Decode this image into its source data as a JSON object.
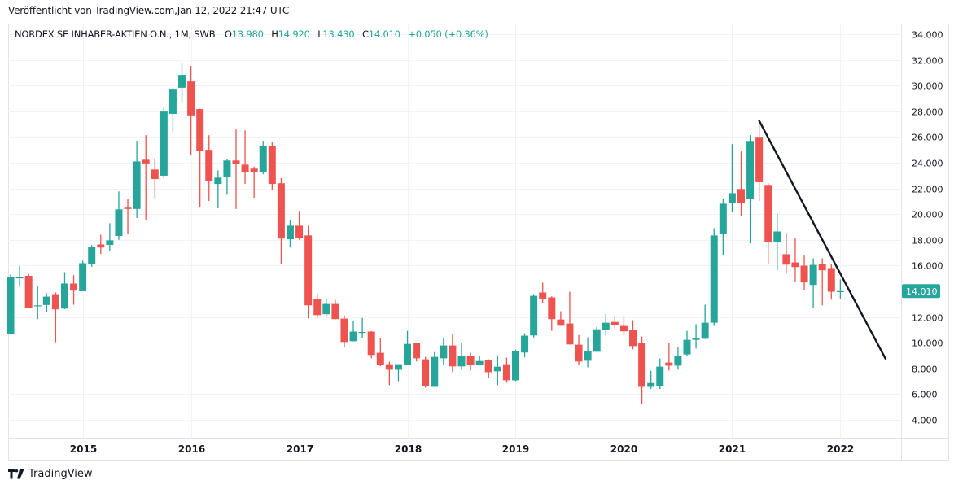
{
  "header": {
    "published": "Veröffentlicht von TradingView.com,Jan 12, 2022 21:47 UTC"
  },
  "legend": {
    "symbol": "NORDEX SE INHABER-AKTIEN O.N., 1M, SWB",
    "o_label": "O",
    "o_value": "13.980",
    "h_label": "H",
    "h_value": "14.920",
    "l_label": "L",
    "l_value": "13.430",
    "c_label": "C",
    "c_value": "14.010",
    "change": "+0.050 (+0.36%)"
  },
  "footer": {
    "brand": "TradingView"
  },
  "colors": {
    "up": "#26a69a",
    "down": "#ef5350",
    "trendline": "#131722",
    "grid": "#f0f3fa"
  },
  "chart_data": {
    "type": "candlestick",
    "title": "NORDEX SE INHABER-AKTIEN O.N., 1M, SWB",
    "interval": "1M",
    "start_month": "2014-05",
    "ylim": [
      2.6,
      34.76
    ],
    "yticks": [
      "34.000",
      "32.000",
      "30.000",
      "28.000",
      "26.000",
      "24.000",
      "22.000",
      "20.000",
      "18.000",
      "16.000",
      "12.000",
      "10.000",
      "8.000",
      "6.000",
      "4.000"
    ],
    "xticks": [
      {
        "label": "2015",
        "date": "2015-01"
      },
      {
        "label": "2016",
        "date": "2016-01"
      },
      {
        "label": "2017",
        "date": "2017-01"
      },
      {
        "label": "2018",
        "date": "2018-01"
      },
      {
        "label": "2019",
        "date": "2019-01"
      },
      {
        "label": "2020",
        "date": "2020-01"
      },
      {
        "label": "2021",
        "date": "2021-01"
      },
      {
        "label": "2022",
        "date": "2022-01"
      }
    ],
    "last_price_label": "14.010",
    "last_price": 14.01,
    "ohlc": [
      [
        10.7,
        15.3,
        10.7,
        15.1
      ],
      [
        15.0,
        15.95,
        14.43,
        15.1
      ],
      [
        15.2,
        15.35,
        12.7,
        12.71
      ],
      [
        12.85,
        14.4,
        11.83,
        12.9
      ],
      [
        12.93,
        13.83,
        12.4,
        13.58
      ],
      [
        13.77,
        13.9,
        10.03,
        12.59
      ],
      [
        12.65,
        15.48,
        12.6,
        14.6
      ],
      [
        14.6,
        15.25,
        12.95,
        14.05
      ],
      [
        14.0,
        16.37,
        14.0,
        16.18
      ],
      [
        16.14,
        17.6,
        15.9,
        17.45
      ],
      [
        17.64,
        18.4,
        16.9,
        17.4
      ],
      [
        17.6,
        19.29,
        17.1,
        17.96
      ],
      [
        18.3,
        21.76,
        18.0,
        20.37
      ],
      [
        20.5,
        21.2,
        18.48,
        20.4
      ],
      [
        20.4,
        25.7,
        19.7,
        24.1
      ],
      [
        24.23,
        26.14,
        19.5,
        23.94
      ],
      [
        23.47,
        24.36,
        21.27,
        22.73
      ],
      [
        22.99,
        28.36,
        22.8,
        27.98
      ],
      [
        27.8,
        29.85,
        26.35,
        29.75
      ],
      [
        29.83,
        31.72,
        28.7,
        30.83
      ],
      [
        30.32,
        31.53,
        24.57,
        27.68
      ],
      [
        28.17,
        28.2,
        20.51,
        24.89
      ],
      [
        25.0,
        26.14,
        21.02,
        22.54
      ],
      [
        22.35,
        23.41,
        20.45,
        22.84
      ],
      [
        22.86,
        24.3,
        21.5,
        24.17
      ],
      [
        24.17,
        26.58,
        20.4,
        23.87
      ],
      [
        23.85,
        26.52,
        22.35,
        23.24
      ],
      [
        23.54,
        23.7,
        21.27,
        23.24
      ],
      [
        23.3,
        25.7,
        23.1,
        25.31
      ],
      [
        25.31,
        25.6,
        21.85,
        22.35
      ],
      [
        22.4,
        22.8,
        16.14,
        18.1
      ],
      [
        18.04,
        19.5,
        17.4,
        19.1
      ],
      [
        19.1,
        20.24,
        18.0,
        18.17
      ],
      [
        18.34,
        19.1,
        11.89,
        12.9
      ],
      [
        13.39,
        13.83,
        11.89,
        12.14
      ],
      [
        12.21,
        13.45,
        12.1,
        13.01
      ],
      [
        13.01,
        13.33,
        11.8,
        11.83
      ],
      [
        11.87,
        12.12,
        9.61,
        10.05
      ],
      [
        10.11,
        11.68,
        10.1,
        10.86
      ],
      [
        10.83,
        11.93,
        10.37,
        10.83
      ],
      [
        10.86,
        10.9,
        8.78,
        9.04
      ],
      [
        9.21,
        10.35,
        8.17,
        8.27
      ],
      [
        8.32,
        8.51,
        6.69,
        7.89
      ],
      [
        7.89,
        8.32,
        7.0,
        8.32
      ],
      [
        8.27,
        10.92,
        8.27,
        9.9
      ],
      [
        9.97,
        9.97,
        8.53,
        8.78
      ],
      [
        8.7,
        8.89,
        6.5,
        6.63
      ],
      [
        6.56,
        9.27,
        6.56,
        8.89
      ],
      [
        8.78,
        10.35,
        8.27,
        9.78
      ],
      [
        9.78,
        10.66,
        7.7,
        8.15
      ],
      [
        8.15,
        9.97,
        7.89,
        8.95
      ],
      [
        8.95,
        9.21,
        7.83,
        8.27
      ],
      [
        8.27,
        8.95,
        8.27,
        8.57
      ],
      [
        8.64,
        8.7,
        7.26,
        7.7
      ],
      [
        7.77,
        9.02,
        6.69,
        8.13
      ],
      [
        8.32,
        8.83,
        6.88,
        7.07
      ],
      [
        7.07,
        9.46,
        7.0,
        9.33
      ],
      [
        9.23,
        10.73,
        8.85,
        10.54
      ],
      [
        10.56,
        13.77,
        10.4,
        13.64
      ],
      [
        13.9,
        14.66,
        13.1,
        13.41
      ],
      [
        13.52,
        13.6,
        10.92,
        11.83
      ],
      [
        11.8,
        12.44,
        11.3,
        11.32
      ],
      [
        11.49,
        13.96,
        9.86,
        9.86
      ],
      [
        9.84,
        10.6,
        8.27,
        8.53
      ],
      [
        8.59,
        10.41,
        8.08,
        9.33
      ],
      [
        9.29,
        11.23,
        9.29,
        11.04
      ],
      [
        11.0,
        12.25,
        10.56,
        11.55
      ],
      [
        11.61,
        12.12,
        11.13,
        11.38
      ],
      [
        11.3,
        12.06,
        10.58,
        10.88
      ],
      [
        10.98,
        11.74,
        9.48,
        9.73
      ],
      [
        9.97,
        10.47,
        5.23,
        6.56
      ],
      [
        6.56,
        7.81,
        6.4,
        6.86
      ],
      [
        6.6,
        8.76,
        6.4,
        8.13
      ],
      [
        8.45,
        9.99,
        7.83,
        8.21
      ],
      [
        8.21,
        9.65,
        7.9,
        8.95
      ],
      [
        9.08,
        10.92,
        9.0,
        10.22
      ],
      [
        10.22,
        11.43,
        9.54,
        10.35
      ],
      [
        10.3,
        12.95,
        10.3,
        11.55
      ],
      [
        11.55,
        18.9,
        11.3,
        18.34
      ],
      [
        18.48,
        21.19,
        16.77,
        20.81
      ],
      [
        20.83,
        25.44,
        20.2,
        21.63
      ],
      [
        21.95,
        24.87,
        19.88,
        20.83
      ],
      [
        21.15,
        26.14,
        17.72,
        25.69
      ],
      [
        26.01,
        27.26,
        21.02,
        22.48
      ],
      [
        22.27,
        22.4,
        16.14,
        17.79
      ],
      [
        17.85,
        20.05,
        15.63,
        18.65
      ],
      [
        16.88,
        18.53,
        15.38,
        16.07
      ],
      [
        16.24,
        18.15,
        14.74,
        15.88
      ],
      [
        15.99,
        16.82,
        14.11,
        14.68
      ],
      [
        14.49,
        16.56,
        12.71,
        16.05
      ],
      [
        16.12,
        16.56,
        12.9,
        15.63
      ],
      [
        15.8,
        16.12,
        13.35,
        13.96
      ],
      [
        13.98,
        14.92,
        13.43,
        14.01
      ]
    ],
    "trendline": {
      "from": {
        "month_index": 83,
        "price": 27.26
      },
      "to": {
        "month_index": 97,
        "price": 8.76
      }
    },
    "grid": true
  }
}
